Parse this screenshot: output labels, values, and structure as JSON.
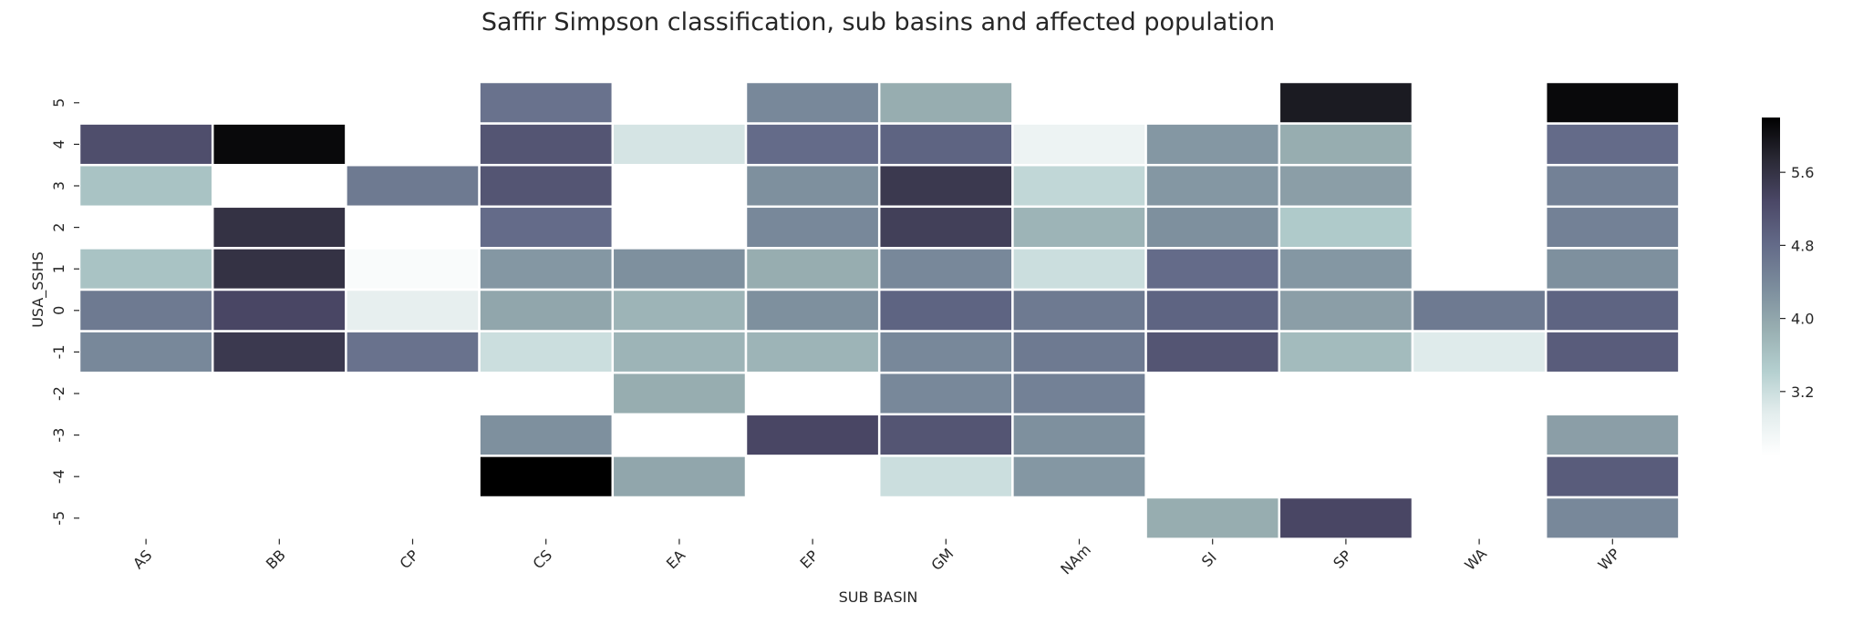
{
  "chart_data": {
    "type": "heatmap",
    "title": "Saffir Simpson classification, sub basins and affected population",
    "xlabel": "SUB BASIN",
    "ylabel": "USA_SSHS",
    "x_categories": [
      "AS",
      "BB",
      "CP",
      "CS",
      "EA",
      "EP",
      "GM",
      "NAm",
      "SI",
      "SP",
      "WA",
      "WP"
    ],
    "y_categories": [
      "5",
      "4",
      "3",
      "2",
      "1",
      "0",
      "-1",
      "-2",
      "-3",
      "-4",
      "-5"
    ],
    "values": [
      [
        null,
        null,
        null,
        4.7,
        null,
        4.4,
        3.9,
        null,
        null,
        5.9,
        null,
        6.1
      ],
      [
        5.2,
        6.1,
        null,
        5.1,
        3.1,
        4.8,
        4.9,
        2.8,
        4.2,
        3.9,
        null,
        4.8
      ],
      [
        3.6,
        null,
        4.6,
        5.1,
        null,
        4.3,
        5.5,
        3.3,
        4.2,
        4.1,
        null,
        4.5
      ],
      [
        null,
        5.6,
        null,
        4.8,
        null,
        4.4,
        5.4,
        3.8,
        4.3,
        3.5,
        null,
        4.5
      ],
      [
        3.6,
        5.6,
        2.6,
        4.2,
        4.3,
        3.9,
        4.4,
        3.2,
        4.8,
        4.2,
        null,
        4.3
      ],
      [
        4.6,
        5.3,
        2.9,
        4.0,
        3.8,
        4.3,
        4.9,
        4.6,
        4.9,
        4.1,
        4.6,
        4.9
      ],
      [
        4.4,
        5.5,
        4.7,
        3.2,
        3.8,
        3.8,
        4.4,
        4.6,
        5.1,
        3.7,
        3.0,
        5.0
      ],
      [
        null,
        null,
        null,
        null,
        3.9,
        null,
        4.4,
        4.5,
        null,
        null,
        null,
        null
      ],
      [
        null,
        null,
        null,
        4.3,
        null,
        5.3,
        5.1,
        4.3,
        null,
        null,
        null,
        4.1
      ],
      [
        null,
        null,
        null,
        6.2,
        4.0,
        null,
        3.2,
        4.2,
        null,
        null,
        null,
        5.0
      ],
      [
        null,
        null,
        null,
        null,
        null,
        null,
        null,
        null,
        3.9,
        5.3,
        null,
        4.4
      ]
    ],
    "colorbar": {
      "colormap": "bone_r",
      "ticks": [
        "3.2",
        "4.0",
        "4.8",
        "5.6"
      ],
      "vmin": 2.5,
      "vmax": 6.2
    }
  }
}
